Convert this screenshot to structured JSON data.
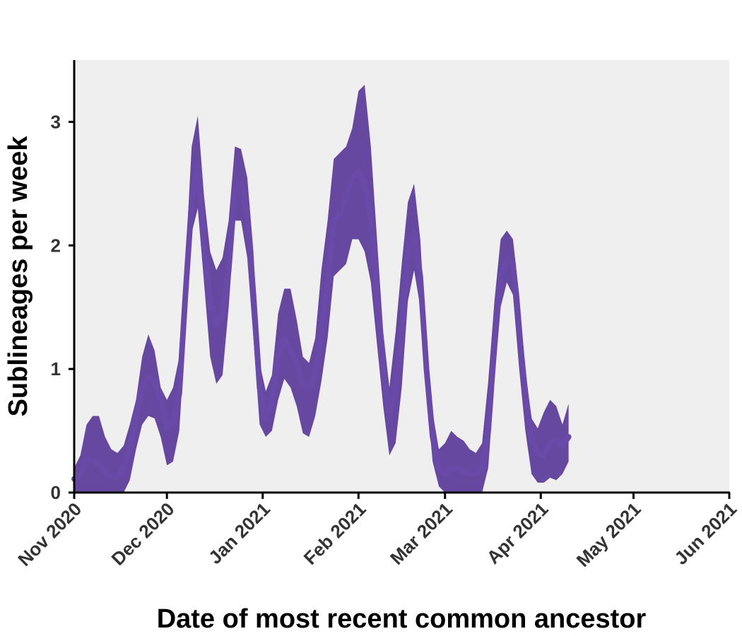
{
  "chart_data": {
    "type": "area",
    "title": "",
    "xlabel": "Date of most recent common ancestor",
    "ylabel": "Sublineages per week",
    "xlim": [
      "2020-11-01",
      "2021-06-01"
    ],
    "ylim": [
      0,
      3.5
    ],
    "x_ticks": [
      {
        "date": "2020-11-01",
        "label": "Nov 2020"
      },
      {
        "date": "2020-12-01",
        "label": "Dec 2020"
      },
      {
        "date": "2021-01-01",
        "label": "Jan 2021"
      },
      {
        "date": "2021-02-01",
        "label": "Feb 2021"
      },
      {
        "date": "2021-03-01",
        "label": "Mar 2021"
      },
      {
        "date": "2021-04-01",
        "label": "Apr 2021"
      },
      {
        "date": "2021-05-01",
        "label": "May 2021"
      },
      {
        "date": "2021-06-01",
        "label": "Jun 2021"
      }
    ],
    "y_ticks": [
      0,
      1,
      2,
      3
    ],
    "grid": false,
    "colors": {
      "band": "#5b3a9a",
      "line": "#6a4aa8",
      "panel": "#efefef",
      "axis": "#000000"
    },
    "series": [
      {
        "x": [
          "2020-11-01",
          "2020-11-03",
          "2020-11-05",
          "2020-11-07",
          "2020-11-09",
          "2020-11-11",
          "2020-11-13",
          "2020-11-15",
          "2020-11-17",
          "2020-11-19",
          "2020-11-21",
          "2020-11-23",
          "2020-11-25",
          "2020-11-27",
          "2020-11-29",
          "2020-12-01",
          "2020-12-03",
          "2020-12-05",
          "2020-12-07",
          "2020-12-09",
          "2020-12-11",
          "2020-12-13",
          "2020-12-15",
          "2020-12-17",
          "2020-12-19",
          "2020-12-21",
          "2020-12-23",
          "2020-12-25",
          "2020-12-27",
          "2020-12-29",
          "2020-12-31",
          "2021-01-02",
          "2021-01-04",
          "2021-01-06",
          "2021-01-08",
          "2021-01-10",
          "2021-01-12",
          "2021-01-14",
          "2021-01-16",
          "2021-01-18",
          "2021-01-20",
          "2021-01-22",
          "2021-01-24",
          "2021-01-26",
          "2021-01-28",
          "2021-01-30",
          "2021-02-01",
          "2021-02-03",
          "2021-02-05",
          "2021-02-07",
          "2021-02-09",
          "2021-02-11",
          "2021-02-13",
          "2021-02-15",
          "2021-02-17",
          "2021-02-19",
          "2021-02-21",
          "2021-02-23",
          "2021-02-25",
          "2021-02-27",
          "2021-03-01",
          "2021-03-03",
          "2021-03-05",
          "2021-03-07",
          "2021-03-09",
          "2021-03-11",
          "2021-03-13",
          "2021-03-15",
          "2021-03-17",
          "2021-03-19",
          "2021-03-21",
          "2021-03-23",
          "2021-03-25",
          "2021-03-27",
          "2021-03-29",
          "2021-03-31",
          "2021-04-02",
          "2021-04-04",
          "2021-04-06",
          "2021-04-08",
          "2021-04-10"
        ],
        "y": [
          0.11,
          0.15,
          0.27,
          0.26,
          0.22,
          0.16,
          0.13,
          0.13,
          0.2,
          0.35,
          0.6,
          0.85,
          0.93,
          0.9,
          0.75,
          0.52,
          0.58,
          0.8,
          1.6,
          2.35,
          2.65,
          2.0,
          1.55,
          1.35,
          1.45,
          1.8,
          2.45,
          2.5,
          2.25,
          1.6,
          0.85,
          0.6,
          0.72,
          1.1,
          1.25,
          1.15,
          1.05,
          0.88,
          0.85,
          0.95,
          1.3,
          1.7,
          2.2,
          2.25,
          2.4,
          2.55,
          2.6,
          2.5,
          2.2,
          1.6,
          1.0,
          0.6,
          0.85,
          1.3,
          1.95,
          2.1,
          1.75,
          1.0,
          0.45,
          0.2,
          0.15,
          0.2,
          0.2,
          0.17,
          0.15,
          0.15,
          0.2,
          0.5,
          1.2,
          1.75,
          1.9,
          1.85,
          1.3,
          0.8,
          0.45,
          0.32,
          0.3,
          0.4,
          0.42,
          0.38,
          0.45
        ],
        "lower": [
          0.0,
          0.0,
          0.0,
          0.0,
          0.0,
          0.0,
          0.0,
          0.0,
          0.0,
          0.1,
          0.35,
          0.55,
          0.62,
          0.6,
          0.45,
          0.22,
          0.25,
          0.5,
          1.3,
          2.1,
          2.3,
          1.7,
          1.1,
          0.88,
          0.95,
          1.5,
          2.2,
          2.2,
          1.9,
          1.25,
          0.55,
          0.45,
          0.5,
          0.75,
          0.92,
          0.85,
          0.7,
          0.48,
          0.45,
          0.62,
          0.9,
          1.25,
          1.75,
          1.8,
          1.85,
          2.05,
          2.05,
          1.95,
          1.7,
          1.2,
          0.7,
          0.3,
          0.4,
          0.85,
          1.55,
          1.8,
          1.5,
          0.8,
          0.25,
          0.05,
          0.0,
          0.0,
          0.0,
          0.0,
          0.0,
          0.0,
          0.0,
          0.2,
          0.9,
          1.5,
          1.7,
          1.6,
          1.0,
          0.5,
          0.15,
          0.08,
          0.08,
          0.12,
          0.1,
          0.15,
          0.25
        ],
        "upper": [
          0.2,
          0.3,
          0.55,
          0.62,
          0.62,
          0.45,
          0.35,
          0.32,
          0.38,
          0.55,
          0.75,
          1.1,
          1.28,
          1.15,
          0.85,
          0.75,
          0.85,
          1.1,
          1.85,
          2.8,
          3.05,
          2.4,
          1.95,
          1.8,
          1.9,
          2.2,
          2.8,
          2.78,
          2.55,
          1.95,
          1.05,
          0.82,
          0.95,
          1.45,
          1.65,
          1.65,
          1.4,
          1.1,
          1.05,
          1.25,
          1.8,
          2.2,
          2.7,
          2.75,
          2.8,
          2.95,
          3.25,
          3.3,
          2.8,
          2.05,
          1.3,
          0.85,
          1.3,
          1.85,
          2.35,
          2.5,
          2.05,
          1.2,
          0.65,
          0.35,
          0.4,
          0.5,
          0.45,
          0.42,
          0.35,
          0.32,
          0.4,
          0.9,
          1.55,
          2.05,
          2.12,
          2.05,
          1.6,
          1.0,
          0.6,
          0.52,
          0.65,
          0.75,
          0.7,
          0.55,
          0.72
        ]
      }
    ]
  }
}
